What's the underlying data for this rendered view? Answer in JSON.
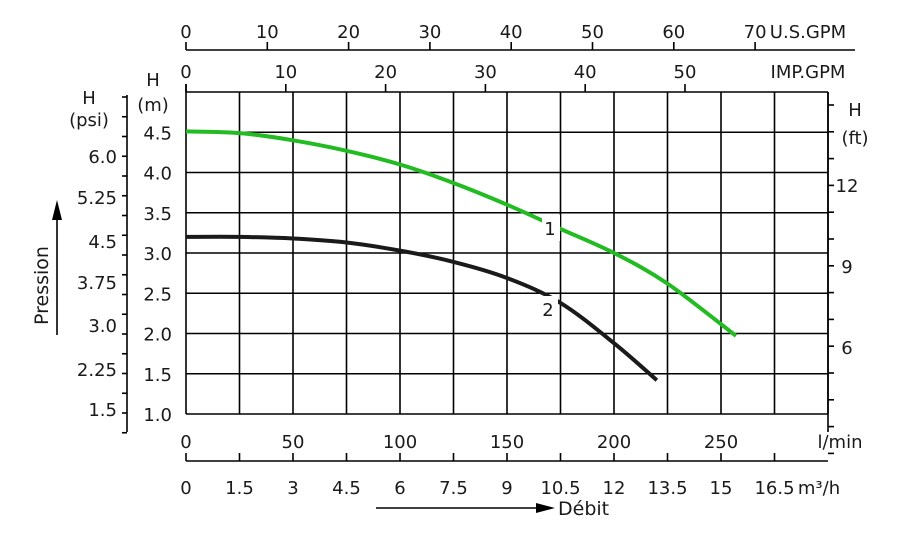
{
  "chart_data": {
    "type": "line",
    "x_axis": {
      "label": "Débit",
      "unit_lmin": "l/min",
      "unit_m3h": "m³/h",
      "ticks_lmin": [
        0,
        50,
        100,
        150,
        200,
        250
      ],
      "ticks_m3h": [
        "0",
        "1.5",
        "3",
        "4.5",
        "6",
        "7.5",
        "9",
        "10.5",
        "12",
        "13.5",
        "15",
        "16.5"
      ],
      "range_lmin": [
        0,
        300
      ]
    },
    "top_axes": {
      "us_gpm": {
        "unit": "U.S.GPM",
        "ticks": [
          0,
          10,
          20,
          30,
          40,
          50,
          60,
          70
        ]
      },
      "imp_gpm": {
        "unit": "IMP.GPM",
        "ticks": [
          0,
          10,
          20,
          30,
          40,
          50
        ]
      }
    },
    "y_axis": {
      "label": "Pression",
      "m_title": [
        "H",
        "(m)"
      ],
      "m_ticks": [
        "1.0",
        "1.5",
        "2.0",
        "2.5",
        "3.0",
        "3.5",
        "4.0",
        "4.5"
      ],
      "psi_title": [
        "H",
        "(psi)"
      ],
      "psi_ticks": [
        "1.5",
        "2.25",
        "3.0",
        "3.75",
        "4.5",
        "5.25",
        "6.0"
      ],
      "ft_title": [
        "H",
        "(ft)"
      ],
      "ft_ticks": [
        "6",
        "9",
        "12"
      ],
      "range_m": [
        1.0,
        5.0
      ]
    },
    "series": [
      {
        "name": "1",
        "color": "#22bb22",
        "points": [
          [
            0,
            4.51
          ],
          [
            25,
            4.49
          ],
          [
            50,
            4.4
          ],
          [
            75,
            4.27
          ],
          [
            100,
            4.1
          ],
          [
            125,
            3.87
          ],
          [
            150,
            3.6
          ],
          [
            175,
            3.3
          ],
          [
            200,
            3.0
          ],
          [
            225,
            2.62
          ],
          [
            257,
            1.97
          ]
        ]
      },
      {
        "name": "2",
        "color": "#1a1a1a",
        "points": [
          [
            0,
            3.2
          ],
          [
            25,
            3.2
          ],
          [
            50,
            3.18
          ],
          [
            75,
            3.13
          ],
          [
            100,
            3.03
          ],
          [
            125,
            2.89
          ],
          [
            150,
            2.69
          ],
          [
            175,
            2.38
          ],
          [
            200,
            1.88
          ],
          [
            220,
            1.42
          ]
        ]
      }
    ],
    "grid": true
  }
}
